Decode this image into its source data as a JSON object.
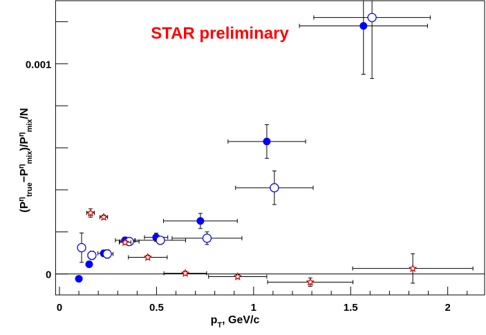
{
  "chart_data": {
    "type": "scatter",
    "annotation": "STAR preliminary",
    "annotation_color": "#ff0000",
    "x_label_runs": [
      {
        "text": "p",
        "kind": "base"
      },
      {
        "text": "T",
        "kind": "sub"
      },
      {
        "text": ", GeV/c",
        "kind": "base"
      }
    ],
    "y_label_runs": [
      {
        "text": "(P",
        "kind": "base"
      },
      {
        "text": "η",
        "kind": "sup"
      },
      {
        "text": "true",
        "kind": "sub"
      },
      {
        "text": "−P",
        "kind": "base"
      },
      {
        "text": "η",
        "kind": "sup"
      },
      {
        "text": "mix",
        "kind": "sub"
      },
      {
        "text": ")/P",
        "kind": "base"
      },
      {
        "text": "η",
        "kind": "sup"
      },
      {
        "text": "mix",
        "kind": "sub"
      },
      {
        "text": "/N",
        "kind": "base"
      }
    ],
    "xlim": [
      -0.02,
      2.19
    ],
    "ylim": [
      -0.0001,
      0.0013
    ],
    "xticks": [
      0,
      0.5,
      1,
      1.5,
      2
    ],
    "yticks": [
      0,
      0.001
    ],
    "xminorticks": [
      0.1,
      0.2,
      0.3,
      0.4,
      0.6,
      0.7,
      0.8,
      0.9,
      1.1,
      1.2,
      1.3,
      1.4,
      1.6,
      1.7,
      1.8,
      1.9,
      2.1
    ],
    "yminorticks": [
      0.0002,
      0.0004,
      0.0006,
      0.0008,
      0.0012
    ],
    "zero_line": true,
    "series": [
      {
        "marker": "filled-circle",
        "color": "#0000ff",
        "x": [
          0.1,
          0.153,
          0.228,
          0.338,
          0.498,
          0.726,
          1.068,
          1.566
        ],
        "values": [
          -2.3e-05,
          4.6e-05,
          9.8e-05,
          0.00016,
          0.000174,
          0.000252,
          0.00063,
          0.00118
        ],
        "xerr": [
          0.01,
          0.01,
          0.03,
          0.05,
          0.06,
          0.19,
          0.2,
          0.33
        ],
        "yerr": [
          1e-05,
          1e-05,
          1.5e-05,
          1.5e-05,
          2e-05,
          3.6e-05,
          8e-05,
          0.00023
        ]
      },
      {
        "marker": "open-circle",
        "color": "#0000ff",
        "x": [
          0.114,
          0.167,
          0.246,
          0.36,
          0.52,
          0.76,
          1.107,
          1.61
        ],
        "values": [
          0.000125,
          8.85e-05,
          9.5e-05,
          0.000154,
          0.00016,
          0.00017,
          0.00041,
          0.00122
        ],
        "xerr": [
          0.01,
          0.02,
          0.03,
          0.05,
          0.13,
          0.18,
          0.2,
          0.3
        ],
        "yerr": [
          7e-05,
          2e-05,
          2e-05,
          1.5e-05,
          1.5e-05,
          3e-05,
          8e-05,
          0.00029
        ]
      },
      {
        "marker": "star",
        "color": "#cc0000",
        "x": [
          0.16,
          0.228,
          0.338,
          0.455,
          0.648,
          0.918,
          1.292,
          1.82
        ],
        "values": [
          0.00029,
          0.00027,
          0.00015,
          7.9e-05,
          3e-06,
          -1.3e-05,
          -3.9e-05,
          2.6e-05
        ],
        "xerr": [
          0.02,
          0.02,
          0.03,
          0.1,
          0.11,
          0.15,
          0.22,
          0.31
        ],
        "yerr": [
          2e-05,
          1e-05,
          1e-05,
          1e-05,
          1e-05,
          1e-05,
          2e-05,
          7e-05
        ]
      }
    ]
  }
}
